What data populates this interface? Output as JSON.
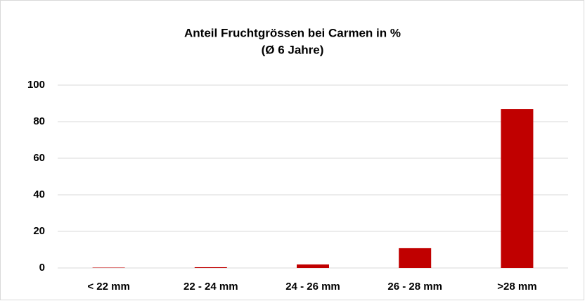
{
  "chart_data": {
    "type": "bar",
    "title": "Anteil Fruchtgrössen bei Carmen in %",
    "subtitle": "(Ø 6 Jahre)",
    "categories": [
      "< 22 mm",
      "22 - 24 mm",
      "24 - 26 mm",
      "26 - 28 mm",
      ">28 mm"
    ],
    "values": [
      0.2,
      0.4,
      1.9,
      10.8,
      86.9
    ],
    "color": "#c00000",
    "ylim": [
      0,
      100
    ],
    "yticks": [
      0,
      20,
      40,
      60,
      80,
      100
    ],
    "grid": true
  }
}
